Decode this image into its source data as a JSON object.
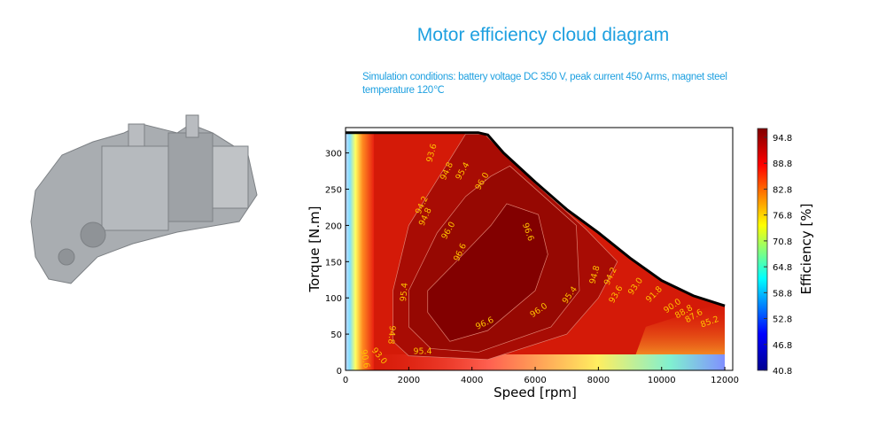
{
  "header": {
    "title": "Motor efficiency cloud diagram",
    "conditions": "Simulation conditions: battery voltage DC 350 V, peak current 450 Arms, magnet steel temperature 120℃"
  },
  "image": {
    "subject": "motor-illustration"
  },
  "chart_data": {
    "type": "heatmap",
    "subtype": "contour",
    "xlabel": "Speed [rpm]",
    "ylabel": "Torque [N.m]",
    "xlim": [
      0,
      12250
    ],
    "ylim": [
      0,
      335
    ],
    "xticks": [
      0,
      2000,
      4000,
      6000,
      8000,
      10000,
      12000
    ],
    "yticks": [
      0,
      50,
      100,
      150,
      200,
      250,
      300
    ],
    "grid": false,
    "colormap": "jet",
    "colorbar": {
      "label": "Efficiency [%]",
      "range": [
        40.8,
        97.0
      ],
      "ticks": [
        "94.8",
        "88.8",
        "82.8",
        "76.8",
        "70.8",
        "64.8",
        "58.8",
        "52.8",
        "46.8",
        "40.8"
      ]
    },
    "envelope": [
      [
        0,
        328
      ],
      [
        4200,
        328
      ],
      [
        4500,
        325
      ],
      [
        5000,
        300
      ],
      [
        6000,
        260
      ],
      [
        7000,
        222
      ],
      [
        8000,
        190
      ],
      [
        9000,
        155
      ],
      [
        10000,
        124
      ],
      [
        11000,
        103
      ],
      [
        12000,
        89
      ]
    ],
    "regions": [
      {
        "level": 95.4,
        "points": [
          [
            1500,
            40
          ],
          [
            2000,
            20
          ],
          [
            4500,
            15
          ],
          [
            7000,
            50
          ],
          [
            8000,
            100
          ],
          [
            8600,
            150
          ],
          [
            7600,
            195
          ],
          [
            6000,
            258
          ],
          [
            5000,
            300
          ],
          [
            4400,
            326
          ],
          [
            3800,
            326
          ],
          [
            3000,
            270
          ],
          [
            2000,
            200
          ],
          [
            1500,
            110
          ]
        ]
      },
      {
        "level": 96.0,
        "points": [
          [
            2000,
            60
          ],
          [
            2700,
            30
          ],
          [
            4200,
            25
          ],
          [
            6500,
            60
          ],
          [
            7400,
            110
          ],
          [
            7300,
            200
          ],
          [
            5200,
            282
          ],
          [
            4600,
            268
          ],
          [
            3800,
            240
          ],
          [
            2900,
            190
          ],
          [
            2000,
            110
          ]
        ]
      },
      {
        "level": 96.6,
        "points": [
          [
            2600,
            80
          ],
          [
            3300,
            40
          ],
          [
            4500,
            55
          ],
          [
            6000,
            110
          ],
          [
            6400,
            160
          ],
          [
            6100,
            215
          ],
          [
            5100,
            230
          ],
          [
            4600,
            200
          ],
          [
            3500,
            150
          ],
          [
            2600,
            110
          ]
        ]
      }
    ],
    "contour_labels": [
      {
        "text": "93.6",
        "speed": 2720,
        "torque": 300,
        "rot": -75
      },
      {
        "text": "94.8",
        "speed": 3200,
        "torque": 275,
        "rot": -65
      },
      {
        "text": "95.4",
        "speed": 3700,
        "torque": 275,
        "rot": -60
      },
      {
        "text": "96.0",
        "speed": 4320,
        "torque": 261,
        "rot": -60
      },
      {
        "text": "94.2",
        "speed": 2410,
        "torque": 228,
        "rot": -65
      },
      {
        "text": "94.8",
        "speed": 2520,
        "torque": 212,
        "rot": -65
      },
      {
        "text": "96.0",
        "speed": 3250,
        "torque": 193,
        "rot": -60
      },
      {
        "text": "96.6",
        "speed": 3620,
        "torque": 163,
        "rot": -65
      },
      {
        "text": "96.6",
        "speed": 5780,
        "torque": 191,
        "rot": 70
      },
      {
        "text": "95.4",
        "speed": 1850,
        "torque": 108,
        "rot": -85
      },
      {
        "text": "94.8",
        "speed": 1460,
        "torque": 49,
        "rot": 95
      },
      {
        "text": "95.4",
        "speed": 2440,
        "torque": 26,
        "rot": 0
      },
      {
        "text": "96.6",
        "speed": 4400,
        "torque": 65,
        "rot": -25
      },
      {
        "text": "96.0",
        "speed": 6110,
        "torque": 83,
        "rot": -35
      },
      {
        "text": "95.4",
        "speed": 7090,
        "torque": 104,
        "rot": -55
      },
      {
        "text": "94.8",
        "speed": 7880,
        "torque": 132,
        "rot": -75
      },
      {
        "text": "94.2",
        "speed": 8380,
        "torque": 130,
        "rot": -65
      },
      {
        "text": "93.6",
        "speed": 8550,
        "torque": 105,
        "rot": -60
      },
      {
        "text": "93.0",
        "speed": 9170,
        "torque": 116,
        "rot": -55
      },
      {
        "text": "91.8",
        "speed": 9760,
        "torque": 105,
        "rot": -45
      },
      {
        "text": "90.0",
        "speed": 10340,
        "torque": 89,
        "rot": -35
      },
      {
        "text": "88.8",
        "speed": 10700,
        "torque": 81,
        "rot": -30
      },
      {
        "text": "87.6",
        "speed": 11020,
        "torque": 75,
        "rot": -30
      },
      {
        "text": "85.2",
        "speed": 11520,
        "torque": 67,
        "rot": -20
      },
      {
        "text": "93.0",
        "speed": 1070,
        "torque": 20,
        "rot": 50
      },
      {
        "text": "90.6",
        "speed": 620,
        "torque": 16,
        "rot": 80
      }
    ]
  }
}
